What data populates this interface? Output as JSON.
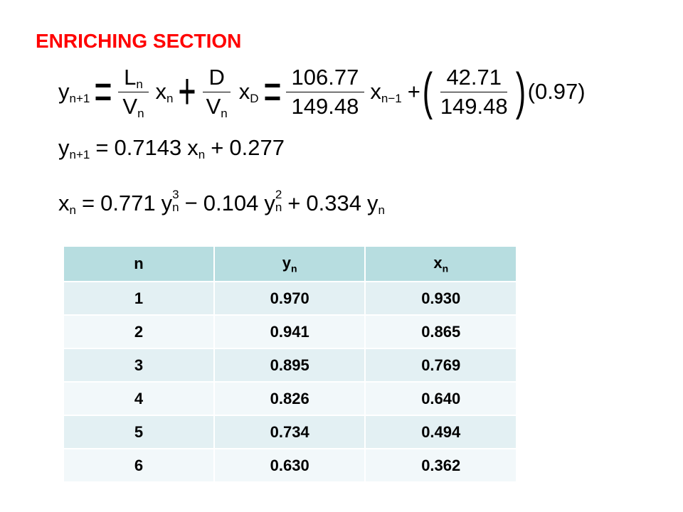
{
  "title": "ENRICHING SECTION",
  "equations": [
    {
      "tokens": [
        {
          "text": "y",
          "sub": "n+1"
        },
        {
          "text": "="
        },
        {
          "num": [
            {
              "text": "L",
              "sub": "n"
            }
          ],
          "den": [
            {
              "text": "V",
              "sub": "n"
            }
          ]
        },
        {
          "text": "x",
          "sub": "n"
        },
        {
          "text": "+"
        },
        {
          "num": [
            {
              "text": "D"
            }
          ],
          "den": [
            {
              "text": "V",
              "sub": "n"
            }
          ]
        },
        {
          "text": "x",
          "sub": "D"
        },
        {
          "text": "="
        },
        {
          "num": [
            {
              "text": "106.77"
            }
          ],
          "den": [
            {
              "text": "149.48"
            }
          ]
        },
        {
          "text": "x",
          "sub": "n−1"
        },
        {
          "text": "+"
        },
        {
          "text": "("
        },
        {
          "num": [
            {
              "text": "42.71"
            }
          ],
          "den": [
            {
              "text": "149.48"
            }
          ]
        },
        {
          "text": ")"
        },
        {
          "text": "(0.97)"
        }
      ]
    },
    {
      "tokens": [
        {
          "text": "y",
          "sub": "n+1"
        },
        {
          "text": "="
        },
        {
          "text": "0.7143"
        },
        {
          "text": "x",
          "sub": "n"
        },
        {
          "text": "+"
        },
        {
          "text": "0.277"
        }
      ]
    },
    {
      "tokens": [
        {
          "text": "x",
          "sub": "n"
        },
        {
          "text": "="
        },
        {
          "text": "0.771"
        },
        {
          "text": "y",
          "sub": "n",
          "sup": "3"
        },
        {
          "text": "−"
        },
        {
          "text": "0.104"
        },
        {
          "text": "y",
          "sub": "n",
          "sup": "2"
        },
        {
          "text": "+"
        },
        {
          "text": "0.334"
        },
        {
          "text": "y",
          "sub": "n"
        }
      ]
    }
  ],
  "table": {
    "header": [
      {
        "text": "n"
      },
      {
        "text": "y",
        "sub": "n"
      },
      {
        "text": "x",
        "sub": "n"
      }
    ],
    "rows": [
      [
        "1",
        "0.970",
        "0.930"
      ],
      [
        "2",
        "0.941",
        "0.865"
      ],
      [
        "3",
        "0.895",
        "0.769"
      ],
      [
        "4",
        "0.826",
        "0.640"
      ],
      [
        "5",
        "0.734",
        "0.494"
      ],
      [
        "6",
        "0.630",
        "0.362"
      ]
    ]
  }
}
